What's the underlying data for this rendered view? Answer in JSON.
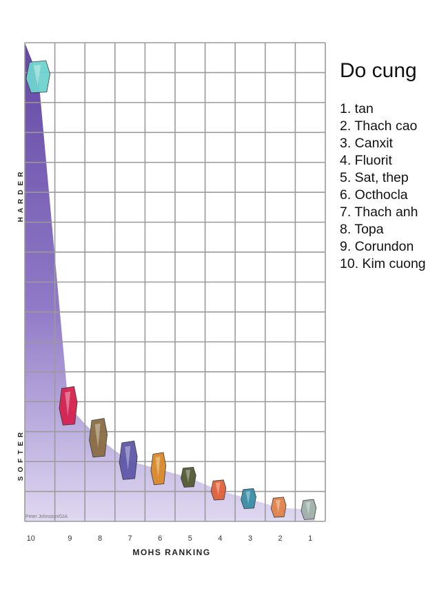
{
  "chart_data": {
    "type": "scatter",
    "title": "Do cung",
    "xlabel": "MOHS RANKING",
    "ylabel_top": "HARDER",
    "ylabel_bottom": "SOFTER",
    "x_ticks": [
      "10",
      "9",
      "8",
      "7",
      "6",
      "5",
      "4",
      "3",
      "2",
      "1"
    ],
    "x_direction": "descending",
    "grid": true,
    "credit": "Peter Johnston/GIA",
    "legend_items": [
      "1. tan",
      "2. Thach cao",
      "3. Canxit",
      "4. Fluorit",
      "5. Sat, thep",
      "6. Octhocla",
      "7. Thach anh",
      "8. Topa",
      "9. Corundon",
      "10. Kim cuong"
    ],
    "points": [
      {
        "mohs": 10,
        "relative_hardness": 1500,
        "mineral": "Kim cuong",
        "color": "#6fd3cf"
      },
      {
        "mohs": 9,
        "relative_hardness": 400,
        "mineral": "Corundon",
        "color": "#d4234f"
      },
      {
        "mohs": 8,
        "relative_hardness": 200,
        "mineral": "Topa",
        "color": "#8a6d45"
      },
      {
        "mohs": 7,
        "relative_hardness": 100,
        "mineral": "Thach anh",
        "color": "#5f58a8"
      },
      {
        "mohs": 6,
        "relative_hardness": 72,
        "mineral": "Octhocla",
        "color": "#d98a2a"
      },
      {
        "mohs": 5,
        "relative_hardness": 48,
        "mineral": "Sat, thep",
        "color": "#545a32"
      },
      {
        "mohs": 4,
        "relative_hardness": 21,
        "mineral": "Fluorit",
        "color": "#e0613b"
      },
      {
        "mohs": 3,
        "relative_hardness": 9,
        "mineral": "Canxit",
        "color": "#3a8ea8"
      },
      {
        "mohs": 2,
        "relative_hardness": 2,
        "mineral": "Thach cao",
        "color": "#e0824a"
      },
      {
        "mohs": 1,
        "relative_hardness": 1,
        "mineral": "tan",
        "color": "#9fb0a8"
      }
    ]
  },
  "colors": {
    "area_top": "#5b3f9e",
    "area_bottom": "#d6cfec",
    "grid": "#9a9a9a"
  }
}
